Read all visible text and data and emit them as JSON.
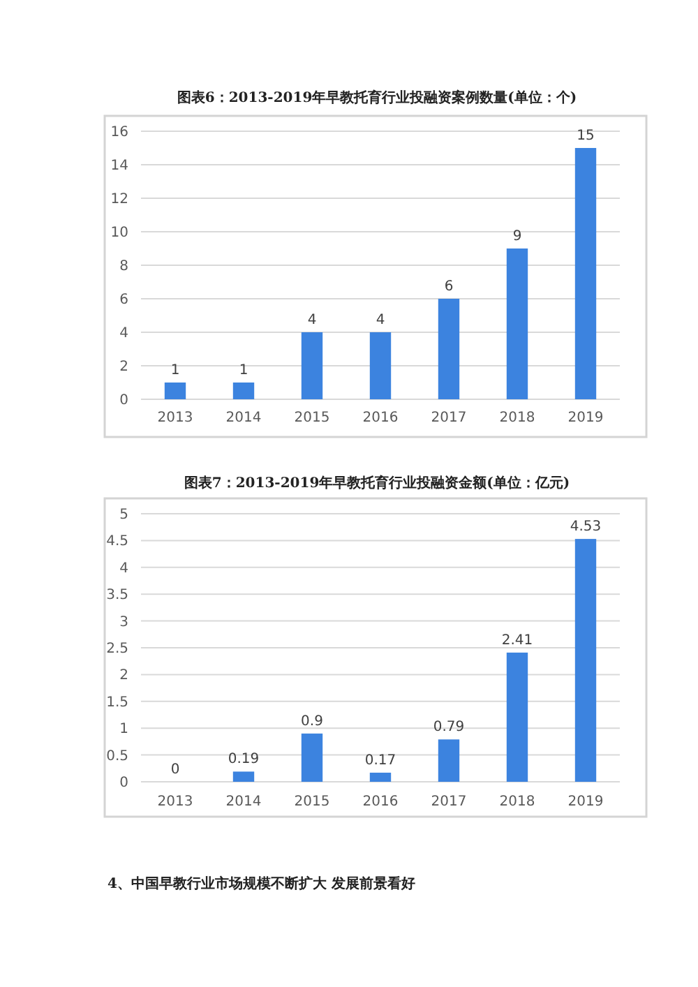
{
  "chart_data": [
    {
      "type": "bar",
      "title": "图表6：2013-2019年早教托育行业投融资案例数量(单位：个)",
      "categories": [
        "2013",
        "2014",
        "2015",
        "2016",
        "2017",
        "2018",
        "2019"
      ],
      "values": [
        1,
        1,
        4,
        4,
        6,
        9,
        15
      ],
      "color": "#3c83df",
      "ylim": [
        0,
        16
      ],
      "yticks": [
        0,
        2,
        4,
        6,
        8,
        10,
        12,
        14,
        16
      ],
      "grid": "y",
      "data_labels": true
    },
    {
      "type": "bar",
      "title": "图表7：2013-2019年早教托育行业投融资金额(单位：亿元)",
      "categories": [
        "2013",
        "2014",
        "2015",
        "2016",
        "2017",
        "2018",
        "2019"
      ],
      "values": [
        0,
        0.19,
        0.9,
        0.17,
        0.79,
        2.41,
        4.53
      ],
      "color": "#3c83df",
      "ylim": [
        0,
        5
      ],
      "yticks": [
        0,
        0.5,
        1,
        1.5,
        2,
        2.5,
        3,
        3.5,
        4,
        4.5,
        5
      ],
      "grid": "y",
      "data_labels": true,
      "annotations": [
        "4、中国早教行业市场规模不断扩大 发展前景看好"
      ]
    }
  ]
}
